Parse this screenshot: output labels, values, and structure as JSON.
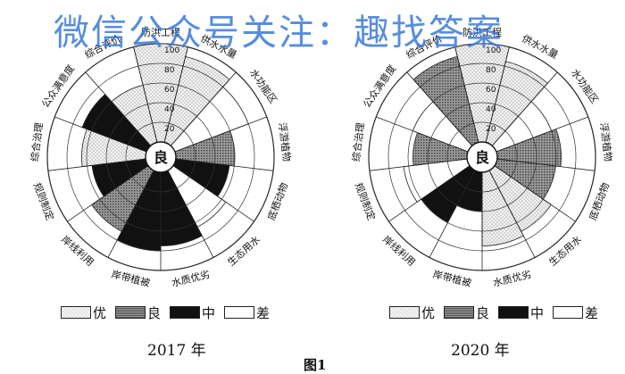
{
  "watermark": "微信公众号关注：趣找答案",
  "figure_caption": "图1",
  "legend": [
    {
      "label": "优",
      "fill": "light"
    },
    {
      "label": "良",
      "fill": "medium"
    },
    {
      "label": "中",
      "fill": "black"
    },
    {
      "label": "差",
      "fill": "white"
    }
  ],
  "colors": {
    "light": "#e0e0e0",
    "medium": "#8a8a8a",
    "black": "#111111",
    "white": "#ffffff"
  },
  "chart_data": [
    {
      "type": "radial-bar",
      "title": "2017 年",
      "center_label": "良",
      "r_ticks": [
        "20",
        "40",
        "60",
        "80",
        "100"
      ],
      "rmax": 100,
      "categories": [
        "防洪工程",
        "供水水量",
        "水功能区",
        "浮游植物",
        "底栖动物",
        "生态用水",
        "水质优劣",
        "岸带植被",
        "岸线利用",
        "规则制定",
        "综合治理",
        "公众满意度",
        "综合评价"
      ],
      "values": [
        100,
        90,
        80,
        60,
        55,
        65,
        75,
        80,
        70,
        55,
        65,
        70,
        60
      ],
      "grades": [
        "优",
        "优",
        "差",
        "良",
        "中",
        "差",
        "中",
        "中",
        "良",
        "中",
        "优",
        "中",
        "优"
      ]
    },
    {
      "type": "radial-bar",
      "title": "2020 年",
      "center_label": "良",
      "r_ticks": [
        "20",
        "40",
        "60",
        "80",
        "100"
      ],
      "rmax": 100,
      "categories": [
        "防洪工程",
        "供水水量",
        "水功能区",
        "浮游植物",
        "底栖动物",
        "生态用水",
        "水质优劣",
        "岸带植被",
        "岸线利用",
        "规则制定",
        "综合治理",
        "公众满意度",
        "综合评价"
      ],
      "values": [
        100,
        85,
        60,
        65,
        60,
        70,
        75,
        40,
        60,
        65,
        55,
        60,
        90
      ],
      "grades": [
        "优",
        "优",
        "差",
        "良",
        "良",
        "优",
        "优",
        "中",
        "中",
        "差",
        "良",
        "差",
        "良"
      ]
    }
  ]
}
